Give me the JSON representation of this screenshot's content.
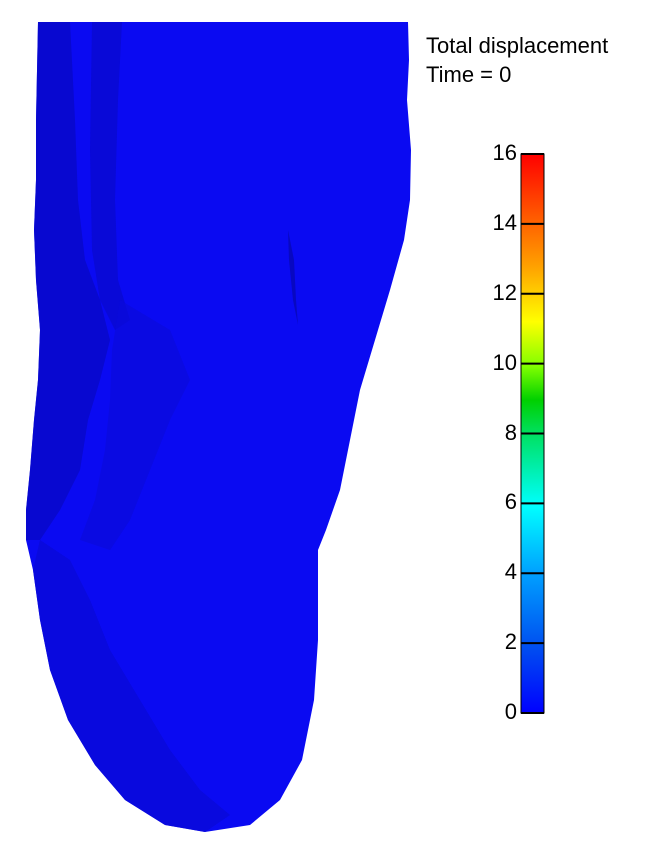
{
  "plot": {
    "title": "Total displacement",
    "time_label": "Time = 0"
  },
  "colorbar": {
    "min": 0,
    "max": 16,
    "ticks": [
      "0",
      "2",
      "4",
      "6",
      "8",
      "10",
      "12",
      "14",
      "16"
    ],
    "colors": [
      "#0000ff",
      "#0050f0",
      "#00a0ff",
      "#00ffff",
      "#00ff80",
      "#00d000",
      "#80ff00",
      "#ffff00",
      "#ffa000",
      "#ff5000",
      "#ff0000"
    ]
  },
  "field": {
    "displacement_value": 0,
    "surface_color": "#0a0af0",
    "shade_color": "#0808c8"
  }
}
